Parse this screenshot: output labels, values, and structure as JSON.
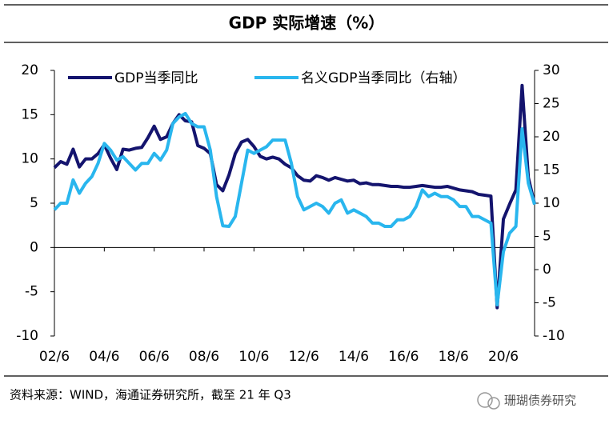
{
  "chart_data": {
    "type": "line",
    "title": "GDP 实际增速（%）",
    "categories": [
      "02/6",
      null,
      null,
      null,
      null,
      null,
      null,
      null,
      "04/6",
      null,
      null,
      null,
      null,
      null,
      null,
      null,
      "06/6",
      null,
      null,
      null,
      null,
      null,
      null,
      null,
      "08/6",
      null,
      null,
      null,
      null,
      null,
      null,
      null,
      "10/6",
      null,
      null,
      null,
      null,
      null,
      null,
      null,
      "12/6",
      null,
      null,
      null,
      null,
      null,
      null,
      null,
      "14/6",
      null,
      null,
      null,
      null,
      null,
      null,
      null,
      "16/6",
      null,
      null,
      null,
      null,
      null,
      null,
      null,
      "18/6",
      null,
      null,
      null,
      null,
      null,
      null,
      null,
      "20/6",
      null,
      null,
      null,
      null,
      null
    ],
    "series": [
      {
        "name": "GDP当季同比",
        "color": "#14146e",
        "values": [
          9.0,
          9.7,
          9.4,
          11.1,
          9.1,
          10.0,
          10.0,
          10.6,
          11.6,
          10.1,
          8.8,
          11.1,
          11.0,
          11.2,
          11.3,
          12.4,
          13.7,
          12.2,
          12.5,
          14.0,
          15.0,
          14.3,
          14.2,
          11.5,
          11.2,
          10.6,
          7.1,
          6.4,
          8.2,
          10.6,
          11.9,
          12.2,
          11.4,
          10.3,
          10.0,
          10.2,
          10.0,
          9.4,
          9.0,
          8.1,
          7.6,
          7.5,
          8.1,
          7.9,
          7.6,
          7.9,
          7.7,
          7.5,
          7.6,
          7.2,
          7.3,
          7.1,
          7.1,
          7.0,
          6.9,
          6.9,
          6.8,
          6.8,
          6.9,
          7.0,
          6.9,
          6.8,
          6.8,
          6.9,
          6.7,
          6.5,
          6.4,
          6.3,
          6.0,
          5.9,
          5.8,
          -6.8,
          3.2,
          4.9,
          6.5,
          18.3,
          7.9,
          4.9
        ]
      },
      {
        "name": "名义GDP当季同比（右轴）",
        "color": "#29b6ee",
        "axis": "y2",
        "values": [
          9,
          10,
          10,
          13.5,
          11.5,
          13,
          14,
          16,
          19,
          18,
          16.5,
          17,
          16,
          15,
          16,
          16,
          17.5,
          16.5,
          18,
          22,
          23,
          23.5,
          22,
          21.5,
          21.5,
          18,
          11,
          6.6,
          6.5,
          8,
          13,
          18,
          17.5,
          18,
          18.5,
          19.5,
          19.5,
          19.5,
          16,
          11,
          9,
          9.5,
          10,
          9.5,
          8.5,
          10,
          10.5,
          8.5,
          9,
          8.5,
          8,
          7,
          7,
          6.5,
          6.5,
          7.5,
          7.5,
          8,
          9.5,
          12,
          11,
          11.5,
          11,
          11,
          10.5,
          9.5,
          9.5,
          8,
          8,
          7.5,
          7,
          -5.3,
          2.7,
          5.5,
          6.5,
          21.2,
          13,
          9.8
        ]
      }
    ],
    "ylim": [
      -10,
      20
    ],
    "yticks": [
      -10,
      -5,
      0,
      5,
      10,
      15,
      20
    ],
    "y2lim": [
      -10,
      30
    ],
    "y2ticks": [
      -10,
      -5,
      0,
      5,
      10,
      15,
      20,
      25,
      30
    ],
    "grid": false
  },
  "footer": {
    "source": "资料来源：WIND，海通证券研究所，截至 21 年 Q3",
    "watermark": "珊瑚债券研究"
  }
}
